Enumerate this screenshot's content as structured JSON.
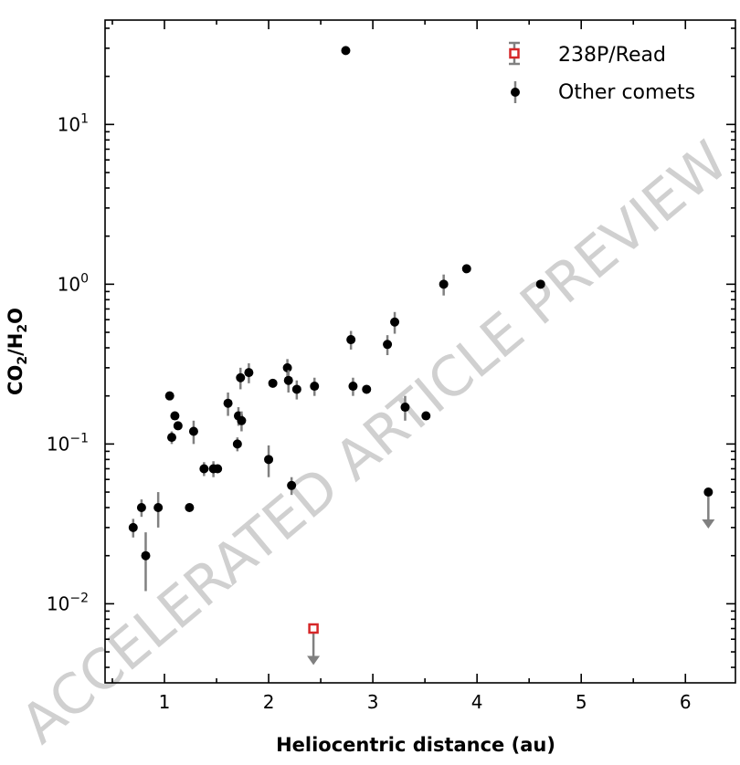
{
  "chart_data": {
    "type": "scatter",
    "xlabel": "Heliocentric distance (au)",
    "ylabel_parts": [
      "CO",
      "2",
      "/H",
      "2",
      "O"
    ],
    "xlim": [
      0.43,
      6.48
    ],
    "ylim": [
      0.0032,
      45
    ],
    "yscale": "log",
    "xticks": [
      1,
      2,
      3,
      4,
      5,
      6
    ],
    "xtick_labels": [
      "1",
      "2",
      "3",
      "4",
      "5",
      "6"
    ],
    "yticks": [
      {
        "value": 10,
        "base": "10",
        "exp": "1"
      },
      {
        "value": 1,
        "base": "10",
        "exp": "0"
      },
      {
        "value": 0.1,
        "base": "10",
        "exp": "−1"
      },
      {
        "value": 0.01,
        "base": "10",
        "exp": "−2"
      }
    ],
    "grid": false,
    "legend_position": "top-right",
    "colors": {
      "read": "#d62728",
      "other": "#000000",
      "errorbar": "#808080"
    },
    "series": [
      {
        "name": "238P/Read",
        "marker": "open-square",
        "points": [
          {
            "x": 2.43,
            "y": 0.007,
            "upper_limit": true
          }
        ]
      },
      {
        "name": "Other comets",
        "marker": "filled-circle",
        "points": [
          {
            "x": 0.7,
            "y": 0.03,
            "err": [
              0.004,
              0.004
            ]
          },
          {
            "x": 0.78,
            "y": 0.04,
            "err": [
              0.005,
              0.005
            ]
          },
          {
            "x": 0.82,
            "y": 0.02,
            "err": [
              0.008,
              0.008
            ]
          },
          {
            "x": 0.94,
            "y": 0.04,
            "err": [
              0.01,
              0.01
            ]
          },
          {
            "x": 1.05,
            "y": 0.2
          },
          {
            "x": 1.07,
            "y": 0.11,
            "err": [
              0.01,
              0.01
            ]
          },
          {
            "x": 1.1,
            "y": 0.15
          },
          {
            "x": 1.13,
            "y": 0.13
          },
          {
            "x": 1.24,
            "y": 0.04
          },
          {
            "x": 1.28,
            "y": 0.12,
            "err": [
              0.02,
              0.02
            ]
          },
          {
            "x": 1.38,
            "y": 0.07,
            "err": [
              0.007,
              0.007
            ]
          },
          {
            "x": 1.47,
            "y": 0.07,
            "err": [
              0.008,
              0.008
            ]
          },
          {
            "x": 1.51,
            "y": 0.07
          },
          {
            "x": 1.61,
            "y": 0.18,
            "err": [
              0.03,
              0.03
            ]
          },
          {
            "x": 1.7,
            "y": 0.1,
            "err": [
              0.01,
              0.01
            ]
          },
          {
            "x": 1.71,
            "y": 0.15,
            "err": [
              0.02,
              0.02
            ]
          },
          {
            "x": 1.74,
            "y": 0.14,
            "err": [
              0.02,
              0.02
            ]
          },
          {
            "x": 1.73,
            "y": 0.26,
            "err": [
              0.04,
              0.04
            ]
          },
          {
            "x": 1.81,
            "y": 0.28,
            "err": [
              0.04,
              0.04
            ]
          },
          {
            "x": 2.0,
            "y": 0.08,
            "err": [
              0.018,
              0.018
            ]
          },
          {
            "x": 2.04,
            "y": 0.24
          },
          {
            "x": 2.18,
            "y": 0.3,
            "err": [
              0.04,
              0.04
            ]
          },
          {
            "x": 2.19,
            "y": 0.25,
            "err": [
              0.04,
              0.04
            ]
          },
          {
            "x": 2.27,
            "y": 0.22,
            "err": [
              0.03,
              0.03
            ]
          },
          {
            "x": 2.22,
            "y": 0.055,
            "err": [
              0.007,
              0.007
            ]
          },
          {
            "x": 2.44,
            "y": 0.23,
            "err": [
              0.03,
              0.03
            ]
          },
          {
            "x": 2.74,
            "y": 29
          },
          {
            "x": 2.79,
            "y": 0.45,
            "err": [
              0.06,
              0.06
            ]
          },
          {
            "x": 2.81,
            "y": 0.23,
            "err": [
              0.03,
              0.03
            ]
          },
          {
            "x": 2.94,
            "y": 0.22
          },
          {
            "x": 3.14,
            "y": 0.42,
            "err": [
              0.06,
              0.06
            ]
          },
          {
            "x": 3.21,
            "y": 0.58,
            "err": [
              0.09,
              0.09
            ]
          },
          {
            "x": 3.31,
            "y": 0.17,
            "err": [
              0.03,
              0.03
            ]
          },
          {
            "x": 3.51,
            "y": 0.15
          },
          {
            "x": 3.68,
            "y": 1.0,
            "err": [
              0.15,
              0.15
            ]
          },
          {
            "x": 3.9,
            "y": 1.25
          },
          {
            "x": 4.61,
            "y": 1.0
          },
          {
            "x": 6.22,
            "y": 0.05,
            "upper_limit": true
          }
        ]
      }
    ]
  },
  "watermark": "ACCELERATED ARTICLE PREVIEW"
}
